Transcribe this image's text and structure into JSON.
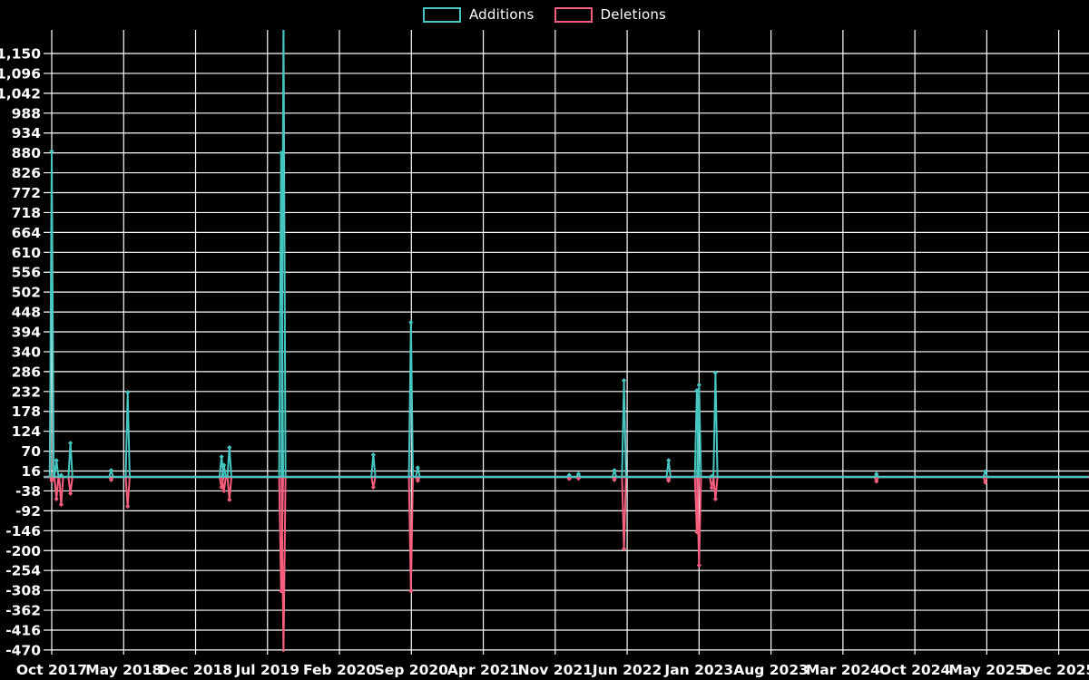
{
  "legend": {
    "items": [
      {
        "label": "Additions",
        "color": "#45c6c0"
      },
      {
        "label": "Deletions",
        "color": "#f85f7e"
      }
    ]
  },
  "chart_data": {
    "type": "line",
    "title": "",
    "legend_position": "top-center",
    "grid": true,
    "background": "#000000",
    "gridline_color": "#ffffff",
    "baseline_color": "#8ea7b4",
    "x_axis": {
      "tick_labels": [
        "Oct 2017",
        "May 2018",
        "Dec 2018",
        "Jul 2019",
        "Feb 2020",
        "Sep 2020",
        "Apr 2021",
        "Nov 2021",
        "Jun 2022",
        "Jan 2023",
        "Aug 2023",
        "Mar 2024",
        "Oct 2024",
        "May 2025",
        "Dec 2025"
      ],
      "tick_interval_months": 7,
      "start_month": "2017-10",
      "end_month": "2025-12"
    },
    "y_axis": {
      "tick_labels": [
        "1,150",
        "1,096",
        "1,042",
        "988",
        "934",
        "880",
        "826",
        "772",
        "718",
        "664",
        "610",
        "556",
        "502",
        "448",
        "394",
        "340",
        "286",
        "232",
        "178",
        "124",
        "70",
        "16",
        "-38",
        "-92",
        "-146",
        "-200",
        "-254",
        "-308",
        "-362",
        "-416",
        "-470"
      ],
      "tick_start": 1150,
      "tick_step": -54,
      "min": -470,
      "max": 1150
    },
    "series": [
      {
        "name": "Additions",
        "color": "#45c6c0",
        "value_key": "additions"
      },
      {
        "name": "Deletions",
        "color": "#f85f7e",
        "value_key": "deletions"
      }
    ],
    "weeks": [
      {
        "date": "2017-10-01",
        "additions": 885,
        "deletions": -10
      },
      {
        "date": "2017-10-15",
        "additions": 45,
        "deletions": -60
      },
      {
        "date": "2017-10-29",
        "additions": 5,
        "deletions": -75
      },
      {
        "date": "2017-11-26",
        "additions": 92,
        "deletions": -45
      },
      {
        "date": "2018-03-25",
        "additions": 18,
        "deletions": -8
      },
      {
        "date": "2018-05-13",
        "additions": 230,
        "deletions": -80
      },
      {
        "date": "2019-02-17",
        "additions": 55,
        "deletions": -28
      },
      {
        "date": "2019-02-24",
        "additions": 32,
        "deletions": -38
      },
      {
        "date": "2019-03-10",
        "additions": 80,
        "deletions": -62
      },
      {
        "date": "2019-08-11",
        "additions": 880,
        "deletions": -310
      },
      {
        "date": "2019-08-18",
        "additions": 1250,
        "deletions": -480
      },
      {
        "date": "2020-05-10",
        "additions": 60,
        "deletions": -28
      },
      {
        "date": "2020-08-30",
        "additions": 420,
        "deletions": -310
      },
      {
        "date": "2020-09-20",
        "additions": 25,
        "deletions": -10
      },
      {
        "date": "2021-12-12",
        "additions": 5,
        "deletions": -5
      },
      {
        "date": "2022-01-09",
        "additions": 8,
        "deletions": -4
      },
      {
        "date": "2022-04-24",
        "additions": 18,
        "deletions": -8
      },
      {
        "date": "2022-05-22",
        "additions": 262,
        "deletions": -195
      },
      {
        "date": "2022-10-02",
        "additions": 45,
        "deletions": -10
      },
      {
        "date": "2022-12-25",
        "additions": 235,
        "deletions": -150
      },
      {
        "date": "2023-01-01",
        "additions": 250,
        "deletions": -240
      },
      {
        "date": "2023-02-08",
        "additions": 2,
        "deletions": -30
      },
      {
        "date": "2023-02-19",
        "additions": 283,
        "deletions": -60
      },
      {
        "date": "2024-06-09",
        "additions": 8,
        "deletions": -12
      },
      {
        "date": "2025-04-27",
        "additions": 15,
        "deletions": -15
      }
    ]
  }
}
